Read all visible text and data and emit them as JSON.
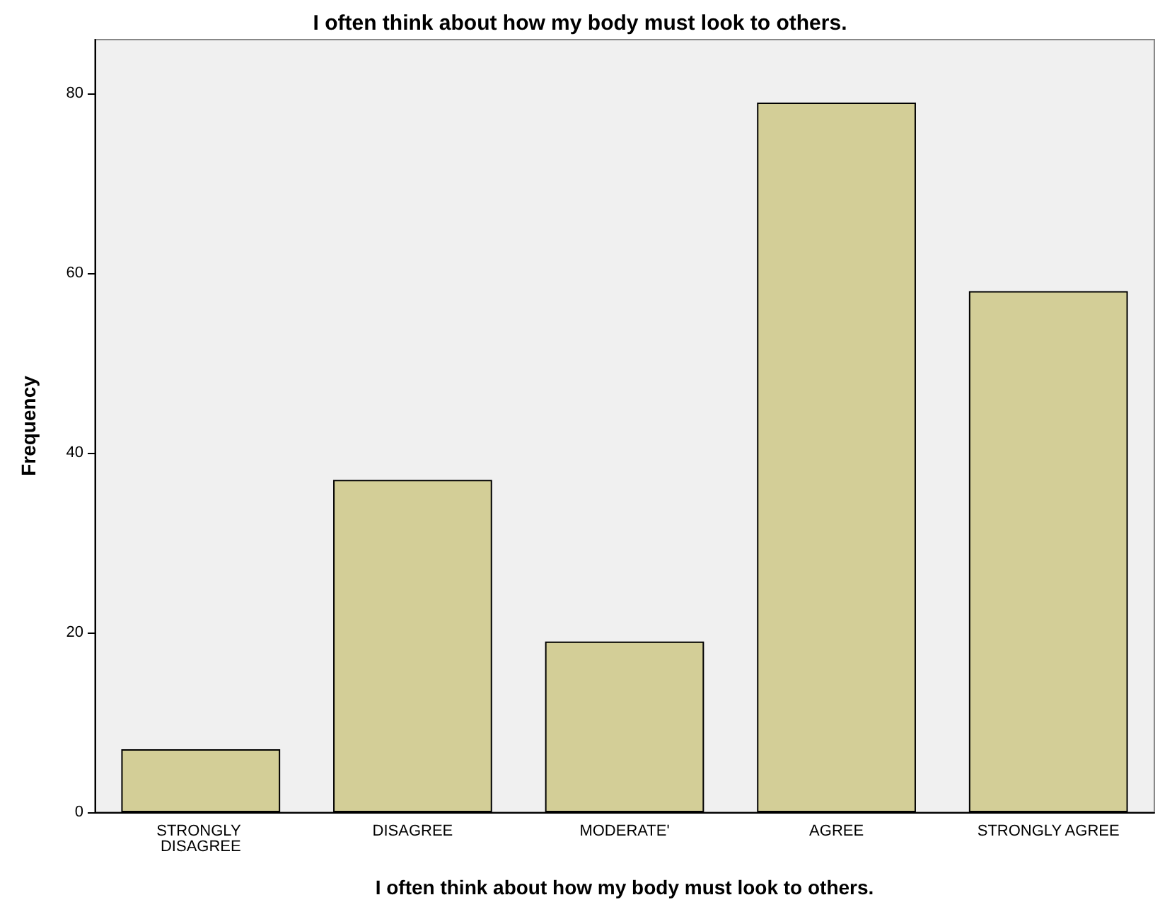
{
  "chart_data": {
    "type": "bar",
    "title": "I often think about how my body must look to others.",
    "xlabel": "I often think about how my body must look to others.",
    "ylabel": "Frequency",
    "categories": [
      "STRONGLY DISAGREE",
      "DISAGREE",
      "MODERATE'",
      "AGREE",
      "STRONGLY AGREE"
    ],
    "values": [
      7,
      37,
      19,
      79,
      58
    ],
    "color": "#d3ce97",
    "ylim": [
      0,
      86
    ],
    "yticks": [
      0,
      20,
      40,
      60,
      80
    ]
  }
}
